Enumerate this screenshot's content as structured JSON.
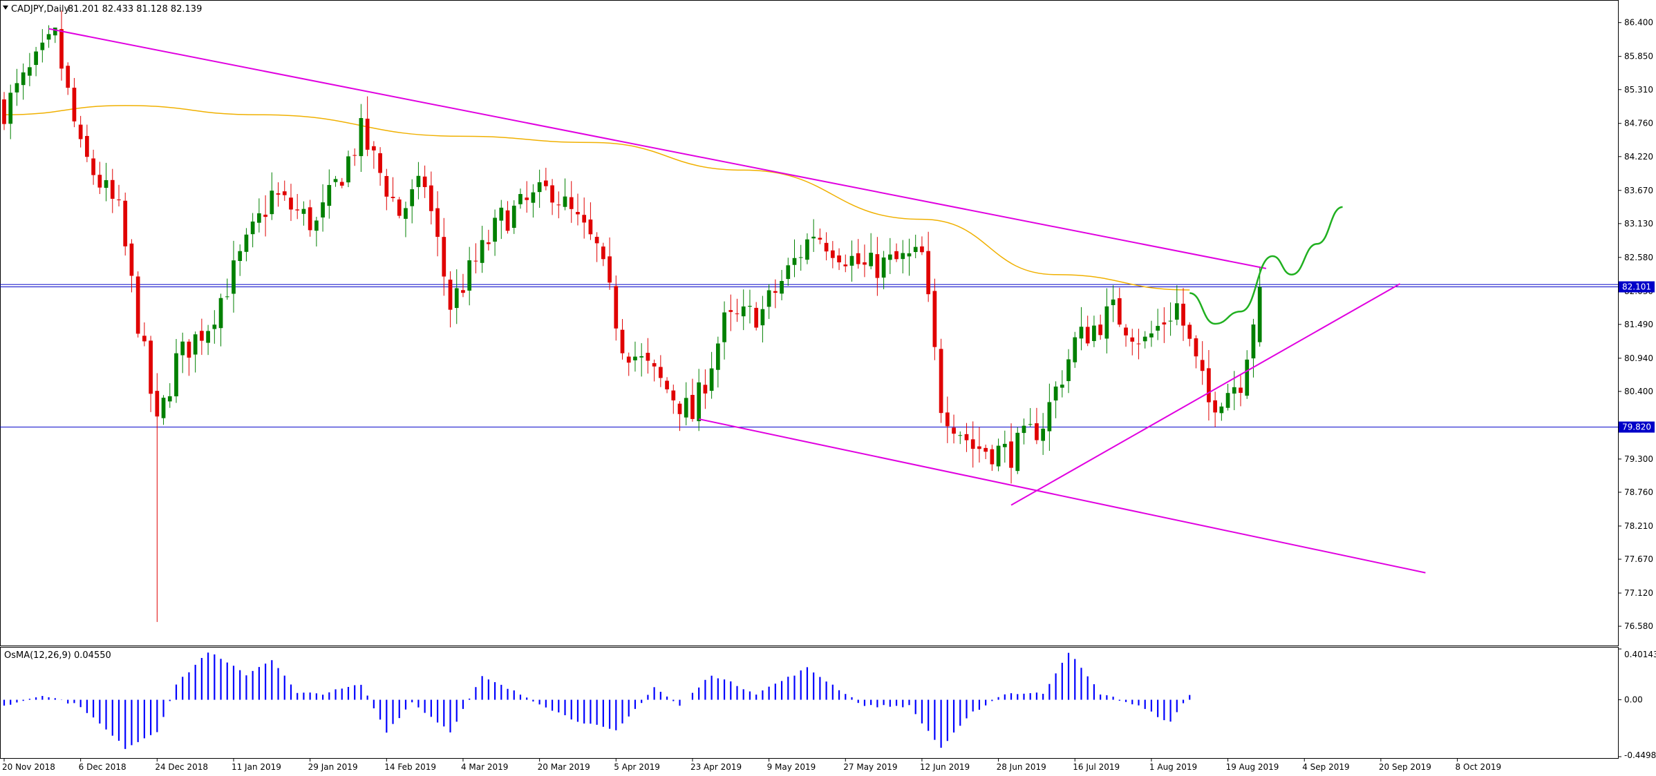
{
  "header": {
    "symbol_info": "CADJPY,Daily",
    "ohlc": "81.201 82.433 81.128 82.139"
  },
  "osma_label": "OsMA(12,26,9) 0.04550",
  "colors": {
    "bull": "#008000",
    "bear": "#e00000",
    "ma": "#f0b000",
    "trendline": "#e000e0",
    "hline": "#0000c8",
    "projection": "#20b020",
    "osma": "#0000ff",
    "frame": "#000000",
    "price_tag_bg": "#0000c8"
  },
  "chart_data": [
    {
      "type": "candlestick",
      "symbol": "CADJPY",
      "timeframe": "Daily",
      "ylim": [
        76.3,
        86.7
      ],
      "y_ticks": [
        "86.400",
        "85.850",
        "85.310",
        "84.760",
        "84.220",
        "83.670",
        "83.130",
        "82.580",
        "82.030",
        "81.490",
        "80.940",
        "80.400",
        "79.300",
        "78.760",
        "78.210",
        "77.670",
        "77.120",
        "76.580"
      ],
      "x_ticks": [
        "20 Nov 2018",
        "6 Dec 2018",
        "24 Dec 2018",
        "11 Jan 2019",
        "29 Jan 2019",
        "14 Feb 2019",
        "4 Mar 2019",
        "20 Mar 2019",
        "5 Apr 2019",
        "23 Apr 2019",
        "9 May 2019",
        "27 May 2019",
        "12 Jun 2019",
        "28 Jun 2019",
        "16 Jul 2019",
        "1 Aug 2019",
        "19 Aug 2019",
        "4 Sep 2019",
        "20 Sep 2019",
        "8 Oct 2019"
      ],
      "bar_count": 240,
      "price_tags": [
        {
          "label": "82.101",
          "value": 82.101
        },
        {
          "label": "79.820",
          "value": 79.82
        }
      ],
      "horizontal_lines": [
        82.101,
        82.139,
        79.82
      ],
      "anchors": [
        {
          "index": 0,
          "price": 85.0
        },
        {
          "index": 8,
          "price": 86.15
        },
        {
          "index": 12,
          "price": 84.3
        },
        {
          "index": 18,
          "price": 83.3
        },
        {
          "index": 24,
          "price": 79.8
        },
        {
          "index": 27,
          "price": 80.9
        },
        {
          "index": 32,
          "price": 81.5
        },
        {
          "index": 42,
          "price": 83.6
        },
        {
          "index": 49,
          "price": 83.1
        },
        {
          "index": 56,
          "price": 84.6
        },
        {
          "index": 62,
          "price": 83.3
        },
        {
          "index": 66,
          "price": 83.8
        },
        {
          "index": 70,
          "price": 81.8
        },
        {
          "index": 78,
          "price": 83.2
        },
        {
          "index": 86,
          "price": 83.7
        },
        {
          "index": 93,
          "price": 82.7
        },
        {
          "index": 97,
          "price": 81.2
        },
        {
          "index": 108,
          "price": 80.0
        },
        {
          "index": 113,
          "price": 81.5
        },
        {
          "index": 119,
          "price": 81.7
        },
        {
          "index": 127,
          "price": 83.0
        },
        {
          "index": 135,
          "price": 82.4
        },
        {
          "index": 144,
          "price": 82.6
        },
        {
          "index": 147,
          "price": 80.2
        },
        {
          "index": 152,
          "price": 79.5
        },
        {
          "index": 158,
          "price": 79.4
        },
        {
          "index": 163,
          "price": 79.9
        },
        {
          "index": 168,
          "price": 81.2
        },
        {
          "index": 174,
          "price": 81.7
        },
        {
          "index": 179,
          "price": 81.2
        },
        {
          "index": 184,
          "price": 81.8
        },
        {
          "index": 189,
          "price": 80.2
        },
        {
          "index": 194,
          "price": 80.6
        },
        {
          "index": 197,
          "price": 82.1
        }
      ],
      "ma_points": [
        {
          "index": 0,
          "price": 84.9
        },
        {
          "index": 19,
          "price": 85.05
        },
        {
          "index": 40,
          "price": 84.9
        },
        {
          "index": 72,
          "price": 84.55
        },
        {
          "index": 92,
          "price": 84.45
        },
        {
          "index": 116,
          "price": 84.0
        },
        {
          "index": 144,
          "price": 83.2
        },
        {
          "index": 165,
          "price": 82.3
        },
        {
          "index": 186,
          "price": 82.05
        }
      ],
      "trendlines": [
        {
          "start": {
            "index": 7,
            "price": 86.3
          },
          "end": {
            "index": 198,
            "price": 82.4
          }
        },
        {
          "start": {
            "index": 109,
            "price": 79.95
          },
          "end": {
            "index": 223,
            "price": 77.45
          }
        },
        {
          "start": {
            "index": 158,
            "price": 78.55
          },
          "end": {
            "index": 219,
            "price": 82.15
          }
        }
      ],
      "projection": [
        {
          "index": 186,
          "price": 82.0
        },
        {
          "index": 190,
          "price": 81.5
        },
        {
          "index": 194,
          "price": 81.7
        },
        {
          "index": 199,
          "price": 82.6
        },
        {
          "index": 202,
          "price": 82.3
        },
        {
          "index": 206,
          "price": 82.8
        },
        {
          "index": 210,
          "price": 83.4
        }
      ]
    },
    {
      "type": "bar",
      "name": "OsMA(12,26,9)",
      "last_value": 0.0455,
      "ylim": [
        -0.4498,
        0.40143
      ],
      "y_ticks": [
        "0.40143",
        "0.00",
        "-0.4498"
      ],
      "anchors": [
        {
          "index": 0,
          "value": -0.05
        },
        {
          "index": 6,
          "value": 0.04
        },
        {
          "index": 12,
          "value": -0.05
        },
        {
          "index": 19,
          "value": -0.38
        },
        {
          "index": 24,
          "value": -0.25
        },
        {
          "index": 27,
          "value": 0.12
        },
        {
          "index": 32,
          "value": 0.38
        },
        {
          "index": 38,
          "value": 0.2
        },
        {
          "index": 42,
          "value": 0.32
        },
        {
          "index": 46,
          "value": 0.05
        },
        {
          "index": 50,
          "value": 0.05
        },
        {
          "index": 56,
          "value": 0.12
        },
        {
          "index": 60,
          "value": -0.25
        },
        {
          "index": 64,
          "value": -0.02
        },
        {
          "index": 70,
          "value": -0.25
        },
        {
          "index": 75,
          "value": 0.18
        },
        {
          "index": 82,
          "value": 0.02
        },
        {
          "index": 89,
          "value": -0.15
        },
        {
          "index": 96,
          "value": -0.25
        },
        {
          "index": 102,
          "value": 0.1
        },
        {
          "index": 106,
          "value": -0.05
        },
        {
          "index": 111,
          "value": 0.2
        },
        {
          "index": 118,
          "value": 0.05
        },
        {
          "index": 126,
          "value": 0.25
        },
        {
          "index": 135,
          "value": -0.05
        },
        {
          "index": 142,
          "value": -0.05
        },
        {
          "index": 147,
          "value": -0.38
        },
        {
          "index": 152,
          "value": -0.1
        },
        {
          "index": 157,
          "value": 0.05
        },
        {
          "index": 163,
          "value": 0.05
        },
        {
          "index": 167,
          "value": 0.38
        },
        {
          "index": 172,
          "value": 0.05
        },
        {
          "index": 178,
          "value": -0.05
        },
        {
          "index": 183,
          "value": -0.18
        },
        {
          "index": 186,
          "value": 0.0455
        }
      ]
    }
  ]
}
